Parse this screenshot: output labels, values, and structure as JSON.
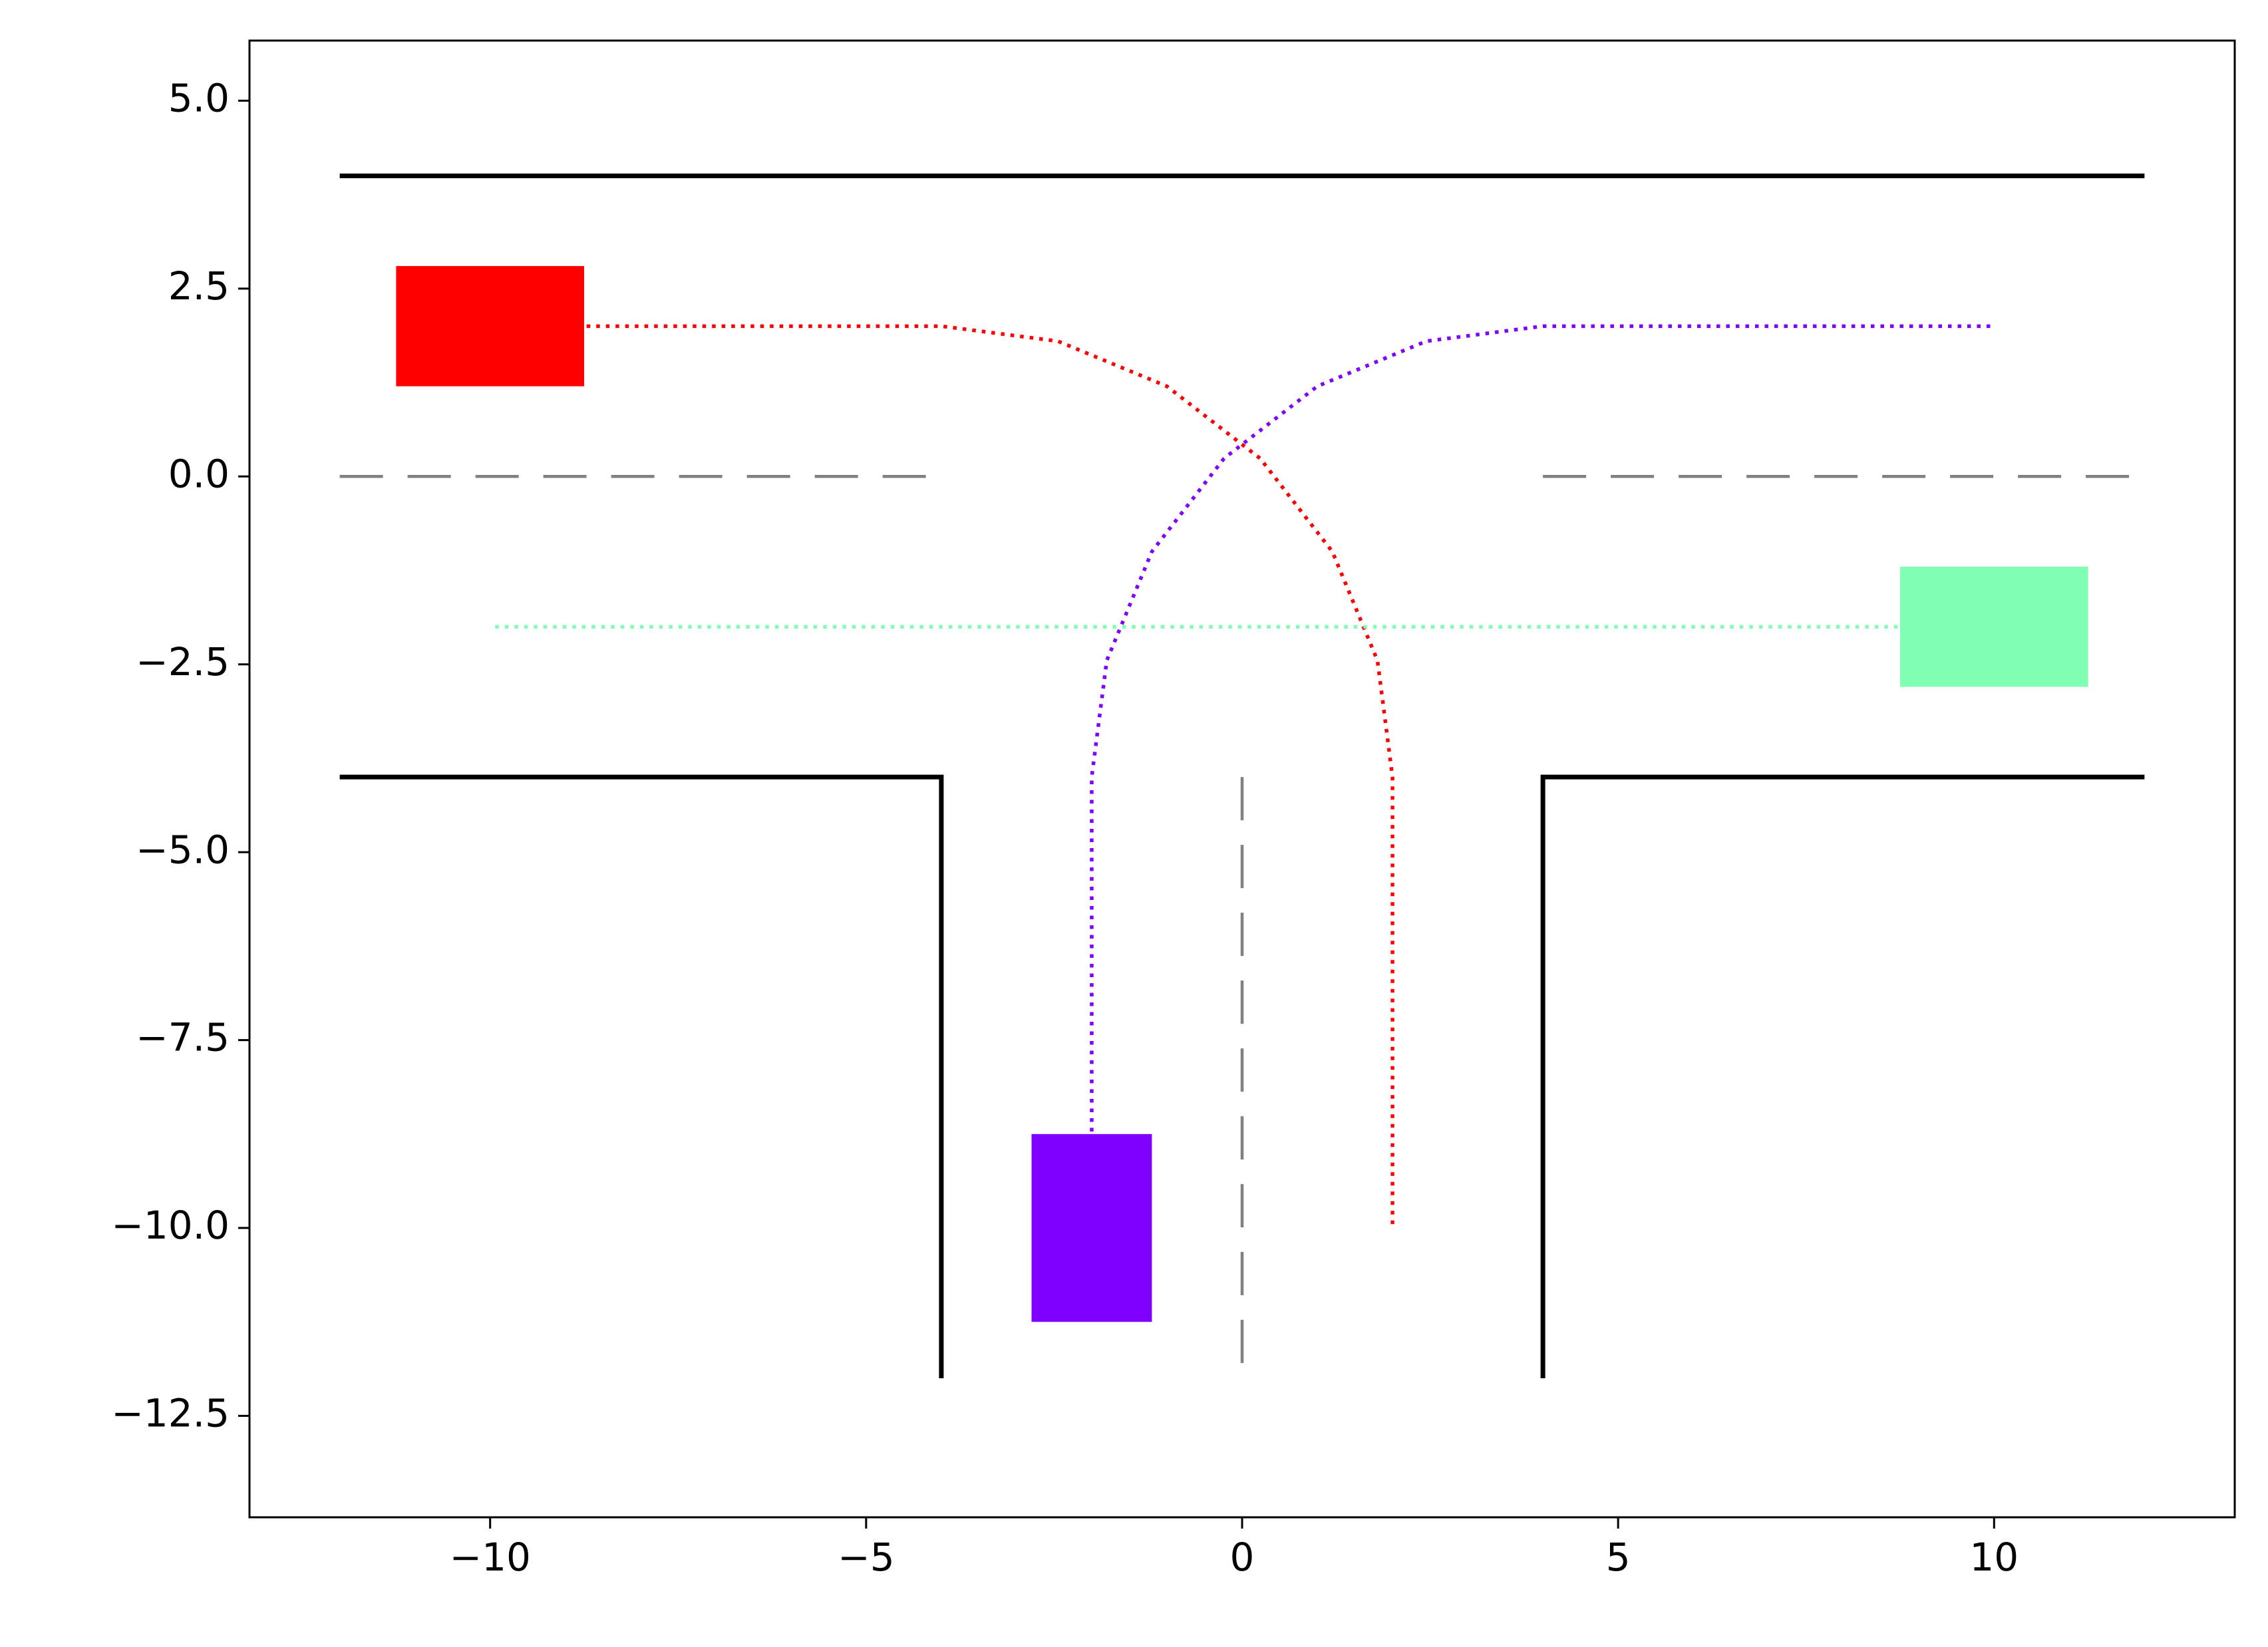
{
  "chart_data": {
    "type": "line",
    "xlim": [
      -13.2,
      13.2
    ],
    "ylim": [
      -13.85,
      5.8
    ],
    "xticks": [
      {
        "value": -10,
        "label": "−10"
      },
      {
        "value": -5,
        "label": "−5"
      },
      0,
      5,
      10
    ],
    "yticks": [
      {
        "value": 5,
        "label": "5.0"
      },
      {
        "value": 2.5,
        "label": "2.5"
      },
      {
        "value": 0,
        "label": "0.0"
      },
      {
        "value": -2.5,
        "label": "−2.5"
      },
      {
        "value": -5,
        "label": "−5.0"
      },
      {
        "value": -7.5,
        "label": "−7.5"
      },
      {
        "value": -10,
        "label": "−10.0"
      },
      {
        "value": -12.5,
        "label": "−12.5"
      }
    ],
    "road_lines": [
      {
        "style": "solid",
        "color": "#000000",
        "x": [
          -12,
          12
        ],
        "y": [
          4,
          4
        ]
      },
      {
        "style": "solid",
        "color": "#000000",
        "x": [
          -12,
          -4,
          -4
        ],
        "y": [
          -4,
          -4,
          -12
        ]
      },
      {
        "style": "solid",
        "color": "#000000",
        "x": [
          12,
          4,
          4
        ],
        "y": [
          -4,
          -4,
          -12
        ]
      },
      {
        "style": "dashed",
        "color": "#808080",
        "x": [
          -12,
          -4
        ],
        "y": [
          0,
          0
        ]
      },
      {
        "style": "dashed",
        "color": "#808080",
        "x": [
          4,
          12
        ],
        "y": [
          0,
          0
        ]
      },
      {
        "style": "dashed",
        "color": "#808080",
        "x": [
          0,
          0
        ],
        "y": [
          -4,
          -12
        ]
      }
    ],
    "series": [
      {
        "color": "#ff0000",
        "x": [
          -10,
          -4,
          -2.45,
          -1,
          0.24,
          1.2,
          1.8,
          2,
          2
        ],
        "y": [
          2,
          2,
          1.8,
          1.2,
          0.24,
          -1,
          -2.45,
          -4,
          -10
        ]
      },
      {
        "color": "#8000ff",
        "x": [
          -2,
          -2,
          -1.8,
          -1.2,
          -0.24,
          1,
          2.45,
          4,
          10
        ],
        "y": [
          -10,
          -4,
          -2.45,
          -1,
          0.24,
          1.2,
          1.8,
          2,
          2
        ]
      },
      {
        "color": "#80ffb4",
        "x": [
          10,
          -10
        ],
        "y": [
          -2,
          -2
        ]
      }
    ],
    "vehicles": [
      {
        "color": "#ff0000",
        "x": -10,
        "y": 2,
        "width": 2.5,
        "height": 1.6
      },
      {
        "color": "#80ffb4",
        "x": 10,
        "y": -2,
        "width": 2.5,
        "height": 1.6
      },
      {
        "color": "#8000ff",
        "x": -2,
        "y": -10,
        "width": 1.6,
        "height": 2.5
      }
    ]
  }
}
